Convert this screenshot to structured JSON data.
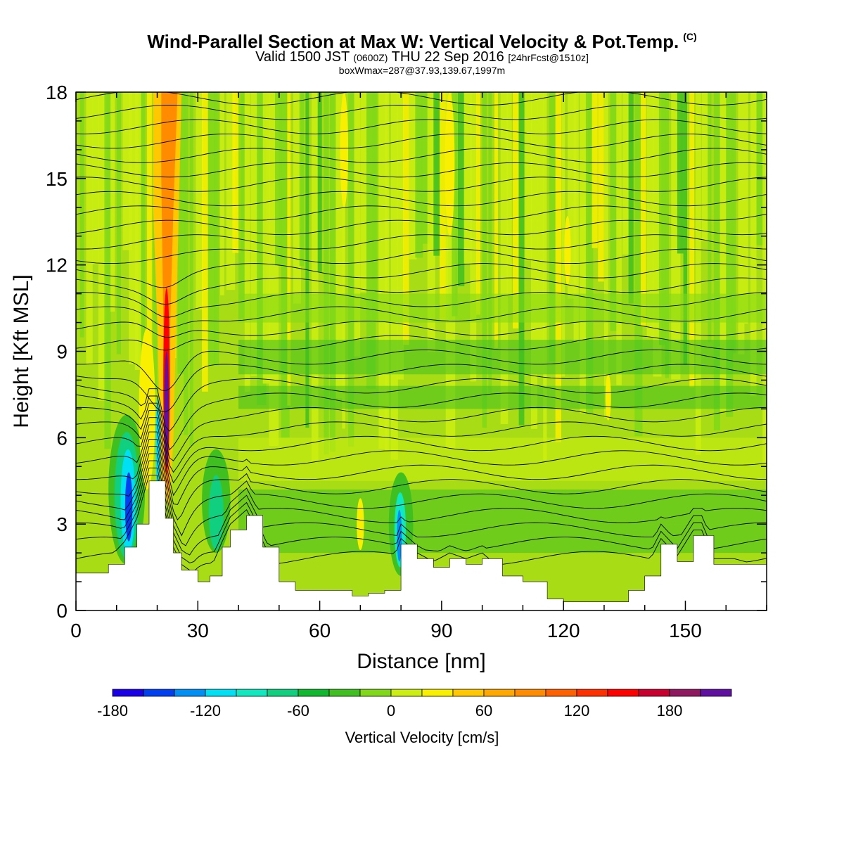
{
  "header": {
    "title": "Wind-Parallel Section at Max W: Vertical Velocity & Pot.Temp.",
    "copyright": "(C)",
    "valid_main": "Valid 1500 JST",
    "valid_small": "(0600Z)",
    "valid_date": "THU 22 Sep 2016",
    "fcst": "[24hrFcst@1510z]",
    "box_info": "boxWmax=287@37.93,139.67,1997m"
  },
  "chart_data": {
    "type": "heatmap",
    "title": "Wind-Parallel Section at Max W: Vertical Velocity & Pot.Temp.",
    "xlabel": "Distance [nm]",
    "ylabel": "Height [Kft MSL]",
    "xlim": [
      0,
      170
    ],
    "ylim": [
      0,
      18
    ],
    "x_ticks": [
      "0",
      "30",
      "60",
      "90",
      "120",
      "150"
    ],
    "y_ticks": [
      "0",
      "3",
      "6",
      "9",
      "12",
      "15",
      "18"
    ],
    "colorbar": {
      "label": "Vertical Velocity [cm/s]",
      "ticks": [
        "-180",
        "-120",
        "-60",
        "0",
        "60",
        "120",
        "180"
      ],
      "levels": [
        -180,
        -160,
        -140,
        -120,
        -100,
        -80,
        -60,
        -40,
        -20,
        0,
        20,
        40,
        60,
        80,
        100,
        120,
        140,
        160,
        180,
        200
      ],
      "colors": [
        "#1a00e6",
        "#0040f0",
        "#0090f5",
        "#00e0f5",
        "#10e8c0",
        "#10d080",
        "#10b830",
        "#40c020",
        "#80d818",
        "#ccee10",
        "#f8f000",
        "#ffc800",
        "#ffa800",
        "#ff8c00",
        "#ff6000",
        "#ff3000",
        "#ff0000",
        "#c80030",
        "#901860",
        "#6010a0"
      ]
    },
    "terrain_kft": [
      [
        0,
        1.3
      ],
      [
        5,
        1.3
      ],
      [
        8,
        1.6
      ],
      [
        12,
        2.2
      ],
      [
        15,
        3.0
      ],
      [
        18,
        4.5
      ],
      [
        20,
        4.5
      ],
      [
        22,
        3.2
      ],
      [
        24,
        2.0
      ],
      [
        26,
        1.4
      ],
      [
        30,
        1.0
      ],
      [
        33,
        1.2
      ],
      [
        36,
        2.2
      ],
      [
        38,
        2.8
      ],
      [
        42,
        3.3
      ],
      [
        46,
        2.2
      ],
      [
        50,
        1.0
      ],
      [
        54,
        0.7
      ],
      [
        60,
        0.7
      ],
      [
        66,
        0.7
      ],
      [
        68,
        0.5
      ],
      [
        72,
        0.6
      ],
      [
        76,
        0.7
      ],
      [
        80,
        2.3
      ],
      [
        84,
        1.8
      ],
      [
        88,
        1.5
      ],
      [
        92,
        1.8
      ],
      [
        96,
        1.6
      ],
      [
        100,
        1.8
      ],
      [
        105,
        1.2
      ],
      [
        110,
        1.0
      ],
      [
        116,
        0.4
      ],
      [
        120,
        0.3
      ],
      [
        126,
        0.3
      ],
      [
        132,
        0.3
      ],
      [
        136,
        0.7
      ],
      [
        140,
        1.2
      ],
      [
        144,
        2.3
      ],
      [
        148,
        1.7
      ],
      [
        152,
        2.6
      ],
      [
        154,
        2.6
      ],
      [
        157,
        1.6
      ],
      [
        162,
        1.6
      ],
      [
        170,
        1.3
      ]
    ],
    "features": [
      {
        "name": "updraft core",
        "x": 22,
        "ymax_kft": 18,
        "w_max": 287
      },
      {
        "name": "downdraft",
        "x": 13,
        "w_min": -160
      },
      {
        "name": "downdraft",
        "x": 35,
        "w_min": -90
      },
      {
        "name": "downdraft",
        "x": 80,
        "w_min": -130
      }
    ],
    "grid": false
  }
}
